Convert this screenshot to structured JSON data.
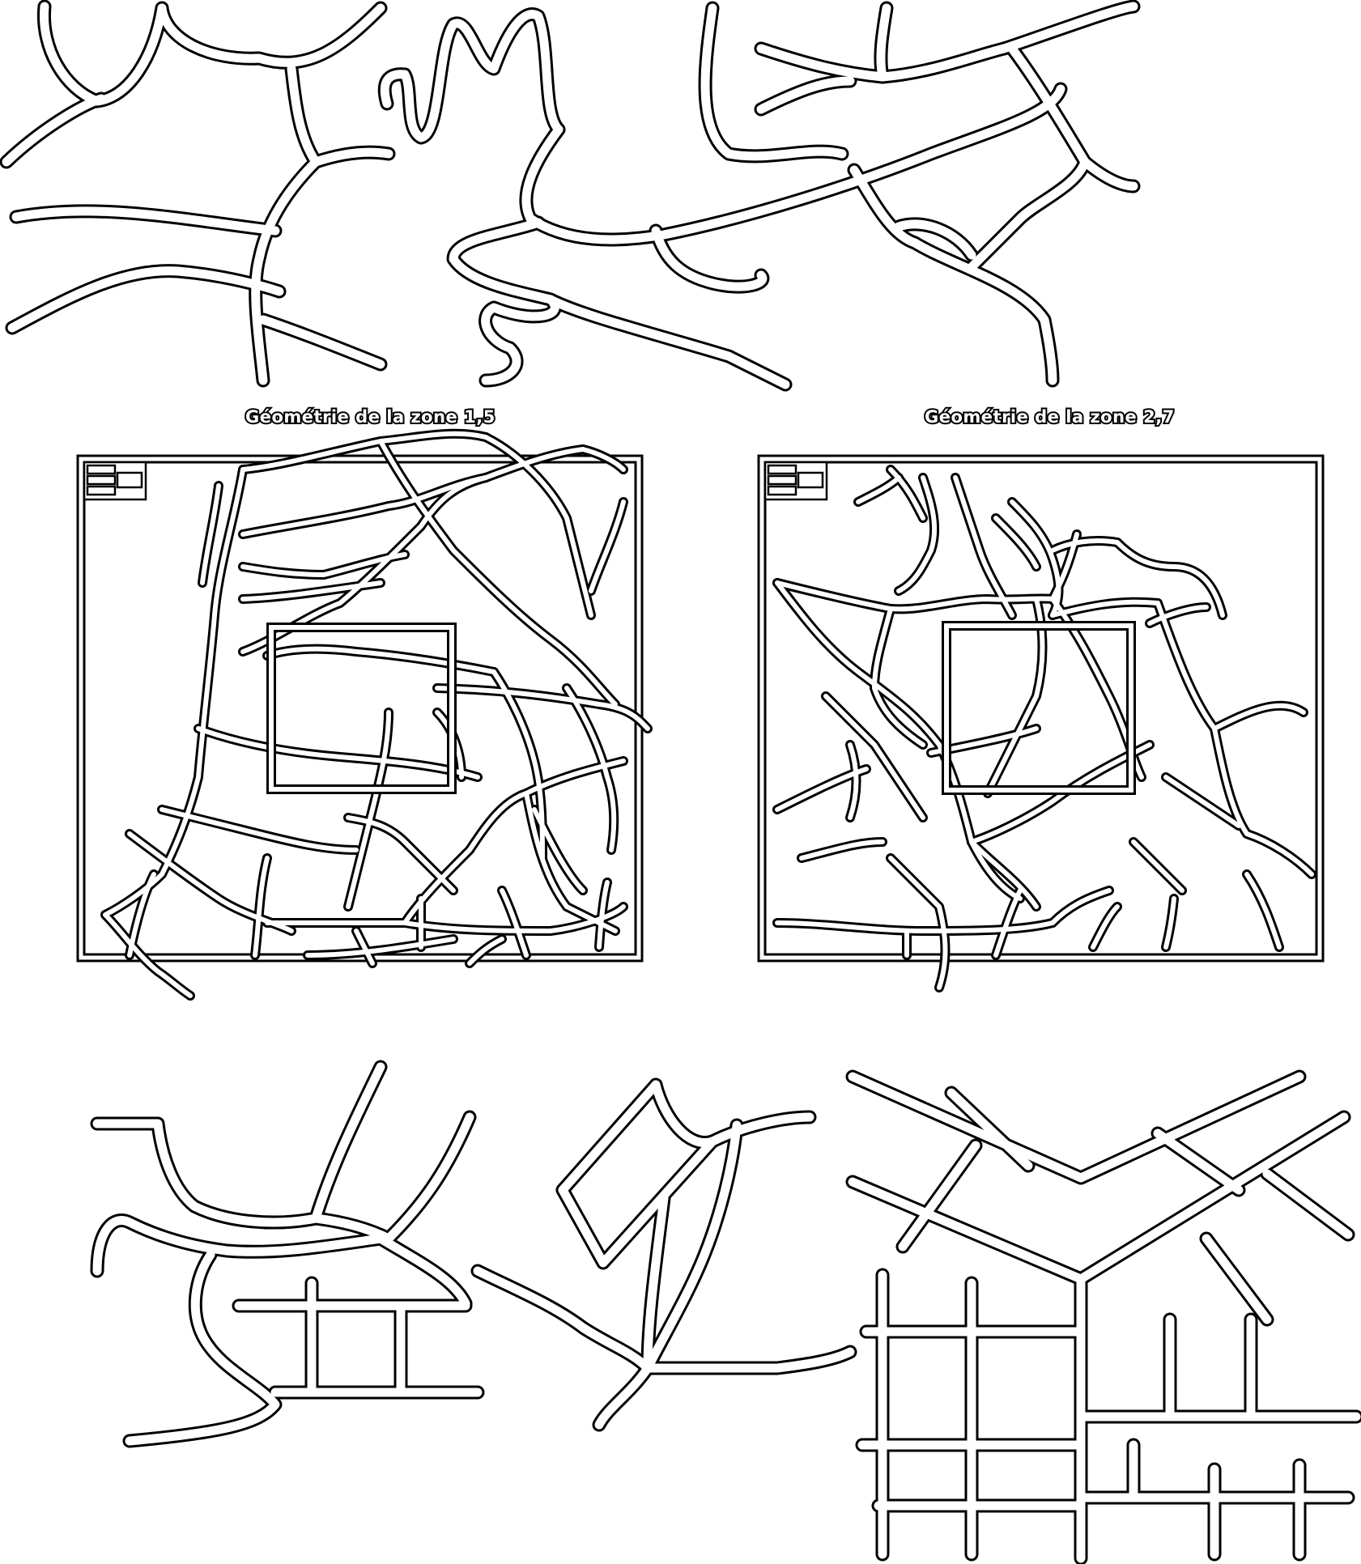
{
  "panels": [
    {
      "caption": "Géométrie de la zone 1,5"
    },
    {
      "caption": "Géométrie de la zone 2,7"
    }
  ],
  "style": {
    "line": "#000000",
    "background": "#ffffff"
  }
}
